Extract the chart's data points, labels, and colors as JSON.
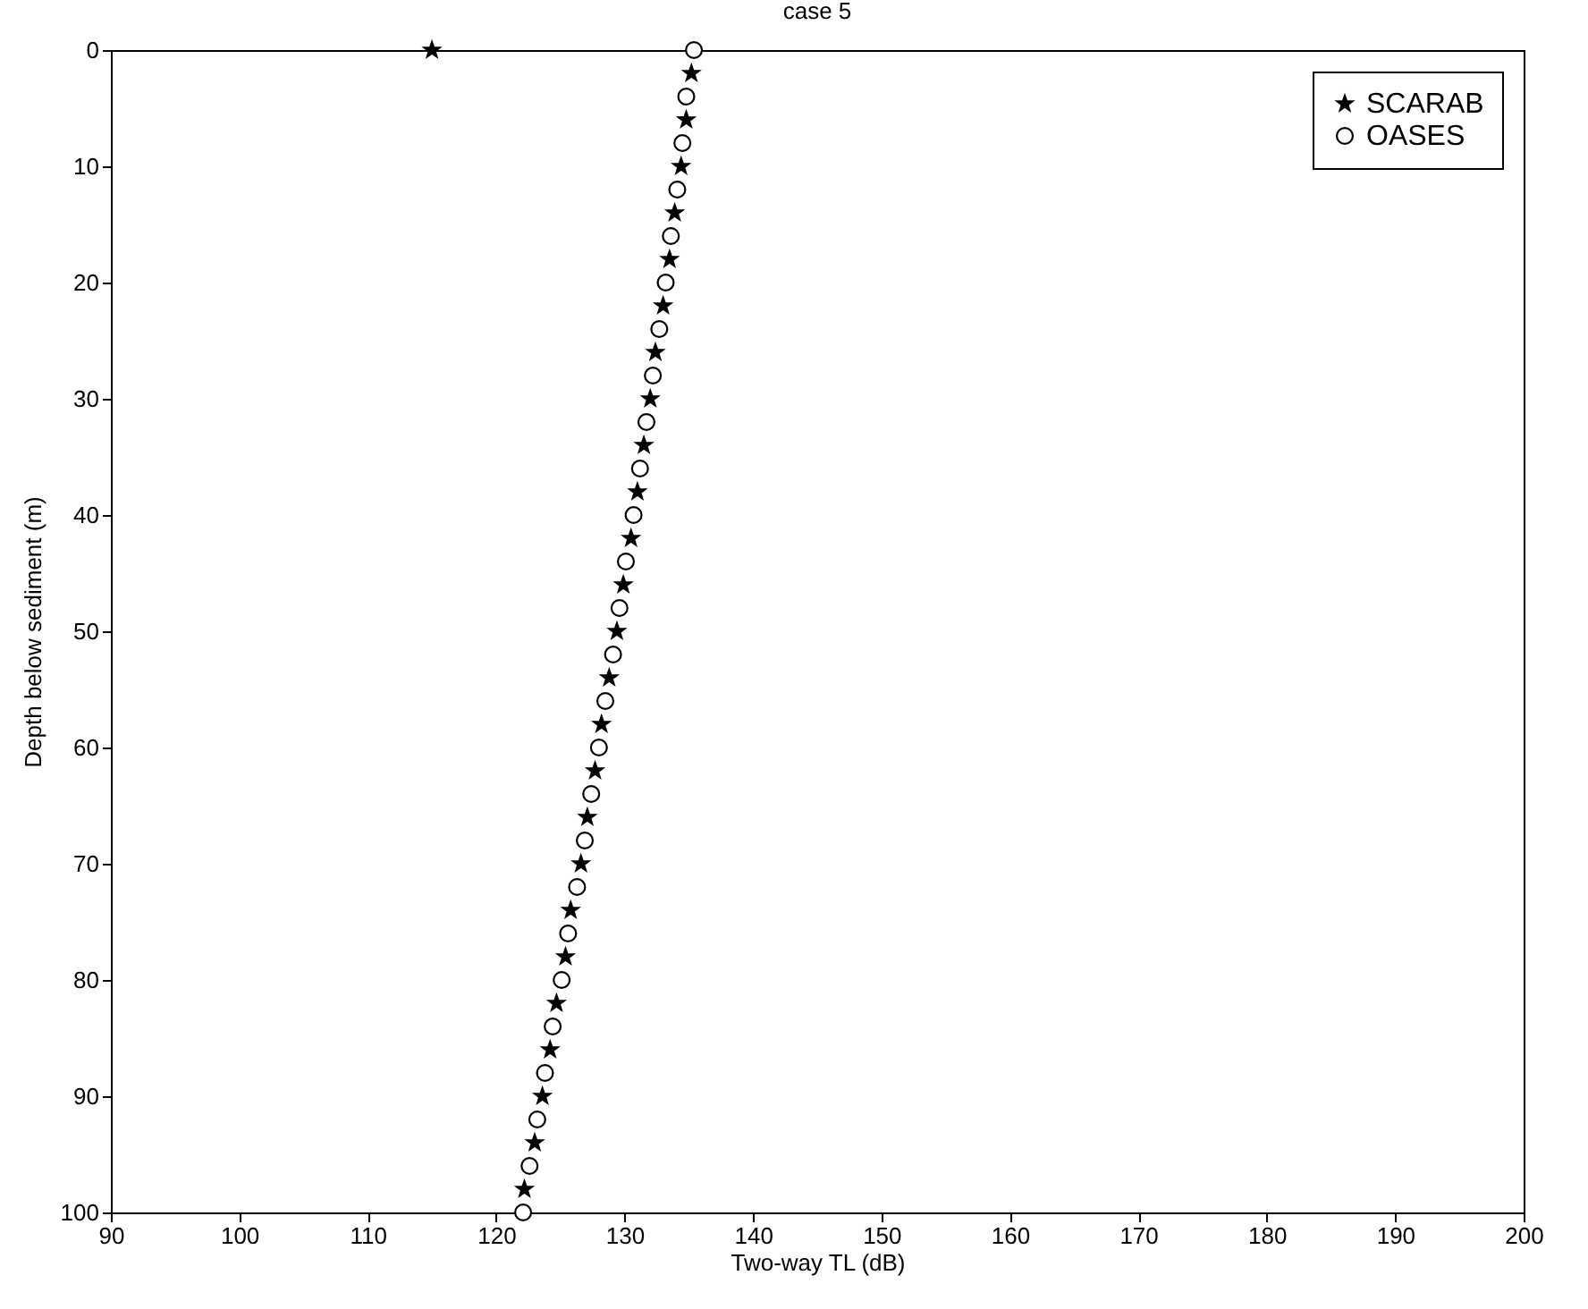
{
  "chart_data": {
    "type": "scatter",
    "title": "case 5",
    "xlabel": "Two-way TL (dB)",
    "ylabel": "Depth below sediment (m)",
    "xlim": [
      90,
      200
    ],
    "ylim": [
      100,
      0
    ],
    "xticks": [
      90,
      100,
      110,
      120,
      130,
      140,
      150,
      160,
      170,
      180,
      190,
      200
    ],
    "yticks": [
      0,
      10,
      20,
      30,
      40,
      50,
      60,
      70,
      80,
      90,
      100
    ],
    "grid": false,
    "legend": "top right",
    "series": [
      {
        "name": "SCARAB",
        "color": "#000000",
        "marker": "star",
        "x": [
          115,
          135.2,
          134.8,
          134.4,
          133.9,
          133.5,
          133.0,
          132.4,
          132.0,
          131.5,
          131.0,
          130.5,
          129.9,
          129.4,
          128.8,
          128.2,
          127.7,
          127.1,
          126.6,
          125.8,
          125.4,
          124.7,
          124.2,
          123.6,
          123.0,
          122.2
        ],
        "values": [
          0,
          2,
          6,
          10,
          14,
          18,
          22,
          26,
          30,
          34,
          38,
          42,
          46,
          50,
          54,
          58,
          62,
          66,
          70,
          74,
          78,
          82,
          86,
          90,
          94,
          98
        ]
      },
      {
        "name": "OASES",
        "color": "#000000",
        "marker": "circle",
        "x": [
          135.4,
          134.8,
          134.5,
          134.1,
          133.6,
          133.2,
          132.7,
          132.2,
          131.7,
          131.2,
          130.7,
          130.1,
          129.6,
          129.1,
          128.5,
          128.0,
          127.4,
          126.9,
          126.3,
          125.6,
          125.1,
          124.4,
          123.8,
          123.2,
          122.6,
          122.1
        ],
        "values": [
          0,
          4,
          8,
          12,
          16,
          20,
          24,
          28,
          32,
          36,
          40,
          44,
          48,
          52,
          56,
          60,
          64,
          68,
          72,
          76,
          80,
          84,
          88,
          92,
          96,
          100
        ]
      }
    ]
  }
}
